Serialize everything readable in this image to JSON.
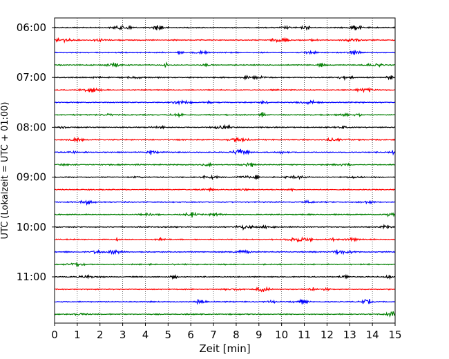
{
  "chart_data": {
    "type": "line",
    "subtype": "helicorder",
    "title": "",
    "xlabel": "Zeit  [min]",
    "ylabel": "UTC (Lokalzeit = UTC + 01:00)",
    "xlim": [
      0,
      15
    ],
    "x_ticks": [
      0,
      1,
      2,
      3,
      4,
      5,
      6,
      7,
      8,
      9,
      10,
      11,
      12,
      13,
      14,
      15
    ],
    "y_tick_labels": [
      "06:00",
      "07:00",
      "08:00",
      "09:00",
      "10:00",
      "11:00"
    ],
    "grid": {
      "x": true,
      "style": "dotted"
    },
    "legend": "none",
    "trace_colors": [
      "#000000",
      "#ff0000",
      "#0000ff",
      "#007f00"
    ],
    "traces": [
      {
        "start": "06:00",
        "color": "#000000"
      },
      {
        "start": "06:15",
        "color": "#ff0000"
      },
      {
        "start": "06:30",
        "color": "#0000ff"
      },
      {
        "start": "06:45",
        "color": "#007f00"
      },
      {
        "start": "07:00",
        "color": "#000000"
      },
      {
        "start": "07:15",
        "color": "#ff0000"
      },
      {
        "start": "07:30",
        "color": "#0000ff"
      },
      {
        "start": "07:45",
        "color": "#007f00"
      },
      {
        "start": "08:00",
        "color": "#000000"
      },
      {
        "start": "08:15",
        "color": "#ff0000"
      },
      {
        "start": "08:30",
        "color": "#0000ff"
      },
      {
        "start": "08:45",
        "color": "#007f00"
      },
      {
        "start": "09:00",
        "color": "#000000"
      },
      {
        "start": "09:15",
        "color": "#ff0000"
      },
      {
        "start": "09:30",
        "color": "#0000ff"
      },
      {
        "start": "09:45",
        "color": "#007f00"
      },
      {
        "start": "10:00",
        "color": "#000000"
      },
      {
        "start": "10:15",
        "color": "#ff0000"
      },
      {
        "start": "10:30",
        "color": "#0000ff"
      },
      {
        "start": "10:45",
        "color": "#007f00"
      },
      {
        "start": "11:00",
        "color": "#000000"
      },
      {
        "start": "11:15",
        "color": "#ff0000"
      },
      {
        "start": "11:30",
        "color": "#0000ff"
      },
      {
        "start": "11:45",
        "color": "#007f00"
      }
    ]
  }
}
